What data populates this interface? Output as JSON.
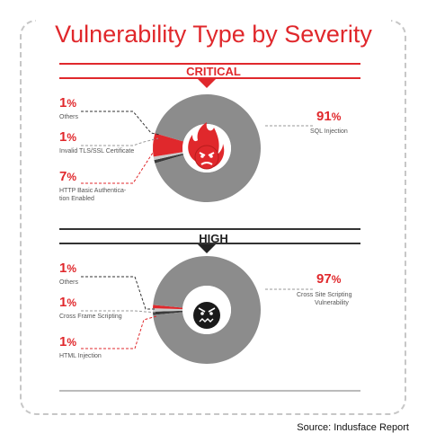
{
  "title": "Vulnerability Type by Severity",
  "source": "Source: Indusface Report",
  "colors": {
    "accent": "#e0282c",
    "gray": "#8c8c8c",
    "dark": "#222222"
  },
  "chart_data": [
    {
      "type": "pie",
      "section": "CRITICAL",
      "slices": [
        {
          "label": "SQL Injection",
          "value": 91,
          "display": "91"
        },
        {
          "label": "Others",
          "value": 1,
          "display": "1"
        },
        {
          "label": "Invalid TLS/SSL Certificate",
          "value": 1,
          "display": "1"
        },
        {
          "label": "HTTP Basic Authentication Enabled",
          "value": 7,
          "display": "7"
        }
      ],
      "icon": "angry-fire-face-icon"
    },
    {
      "type": "pie",
      "section": "HIGH",
      "slices": [
        {
          "label": "Cross Site Scripting Vulnerability",
          "value": 97,
          "display": "97"
        },
        {
          "label": "Others",
          "value": 1,
          "display": "1"
        },
        {
          "label": "Cross Frame Scripting",
          "value": 1,
          "display": "1"
        },
        {
          "label": "HTML Injection",
          "value": 1,
          "display": "1"
        }
      ],
      "icon": "angry-face-icon"
    }
  ],
  "labels": {
    "critical": {
      "others_txt": "Others",
      "tls_txt": "Invalid TLS/SSL Certificate",
      "http_txt_1": "HTTP Basic Authentica-",
      "http_txt_2": "tion Enabled",
      "sql_txt": "SQL Injection"
    },
    "high": {
      "others_txt": "Others",
      "cfs_txt": "Cross Frame Scripting",
      "html_txt": "HTML Injection",
      "xss_txt_1": "Cross Site Scripting",
      "xss_txt_2": "Vulnerability"
    }
  },
  "pct_sign": "%"
}
